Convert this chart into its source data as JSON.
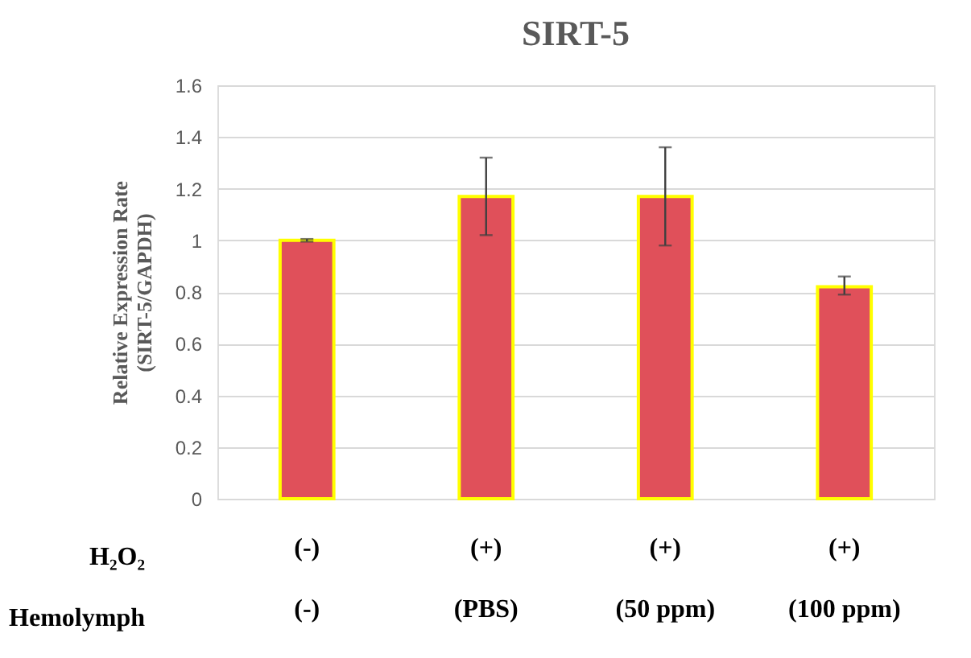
{
  "chart_data": {
    "type": "bar",
    "title": "SIRT-5",
    "ylabel": "Relative Expression Rate (SIRT-5/GAPDH)",
    "categories": [
      "(-)\n(-)",
      "(+)\n(PBS)",
      "(+)\n(50 ppm)",
      "(+)\n(100 ppm)"
    ],
    "values": [
      1.0,
      1.17,
      1.17,
      0.82
    ],
    "errors": [
      [
        0.995,
        1.005
      ],
      [
        1.02,
        1.32
      ],
      [
        0.98,
        1.36
      ],
      [
        0.79,
        0.86
      ]
    ],
    "color": "#e0505a",
    "annotations": [
      "H₂O₂",
      "Hemolymph"
    ],
    "ylim": [
      0,
      1.6
    ],
    "yticks": [
      0,
      0.2,
      0.4,
      0.6,
      0.8,
      1,
      1.2,
      1.4,
      1.6
    ],
    "grid": "y"
  }
}
